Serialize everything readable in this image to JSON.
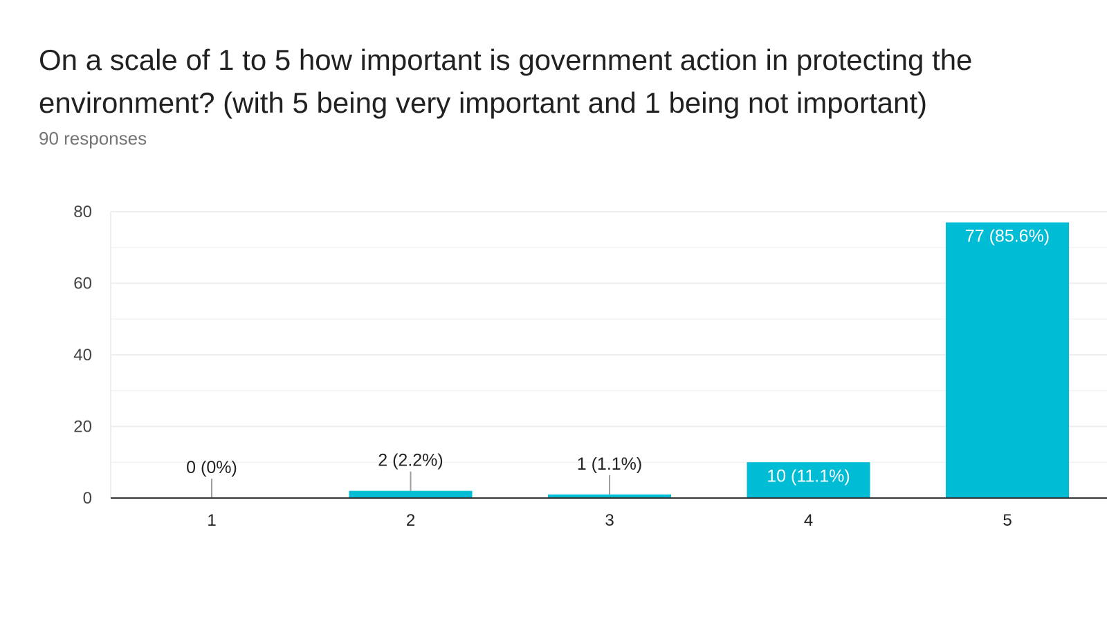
{
  "header": {
    "title": "On a scale of 1 to 5 how important is government action in protecting the environment? (with 5 being very important and 1 being not important)",
    "subtitle": "90 responses"
  },
  "chart_data": {
    "type": "bar",
    "title": "On a scale of 1 to 5 how important is government action in protecting the environment? (with 5 being very important and 1 being not important)",
    "subtitle": "90 responses",
    "categories": [
      "1",
      "2",
      "3",
      "4",
      "5"
    ],
    "values": [
      0,
      2,
      1,
      10,
      77
    ],
    "data_labels": [
      "0 (0%)",
      "2 (2.2%)",
      "1 (1.1%)",
      "10 (11.1%)",
      "77 (85.6%)"
    ],
    "yticks": [
      0,
      20,
      40,
      60,
      80
    ],
    "ylim": [
      0,
      80
    ],
    "xlabel": "",
    "ylabel": "",
    "grid": true,
    "colors": {
      "bar": "#00bcd4",
      "grid": "#eeeeee",
      "axis": "#333333",
      "label_outside": "#222222",
      "label_inside": "#ffffff",
      "leader": "#9e9e9e"
    }
  }
}
